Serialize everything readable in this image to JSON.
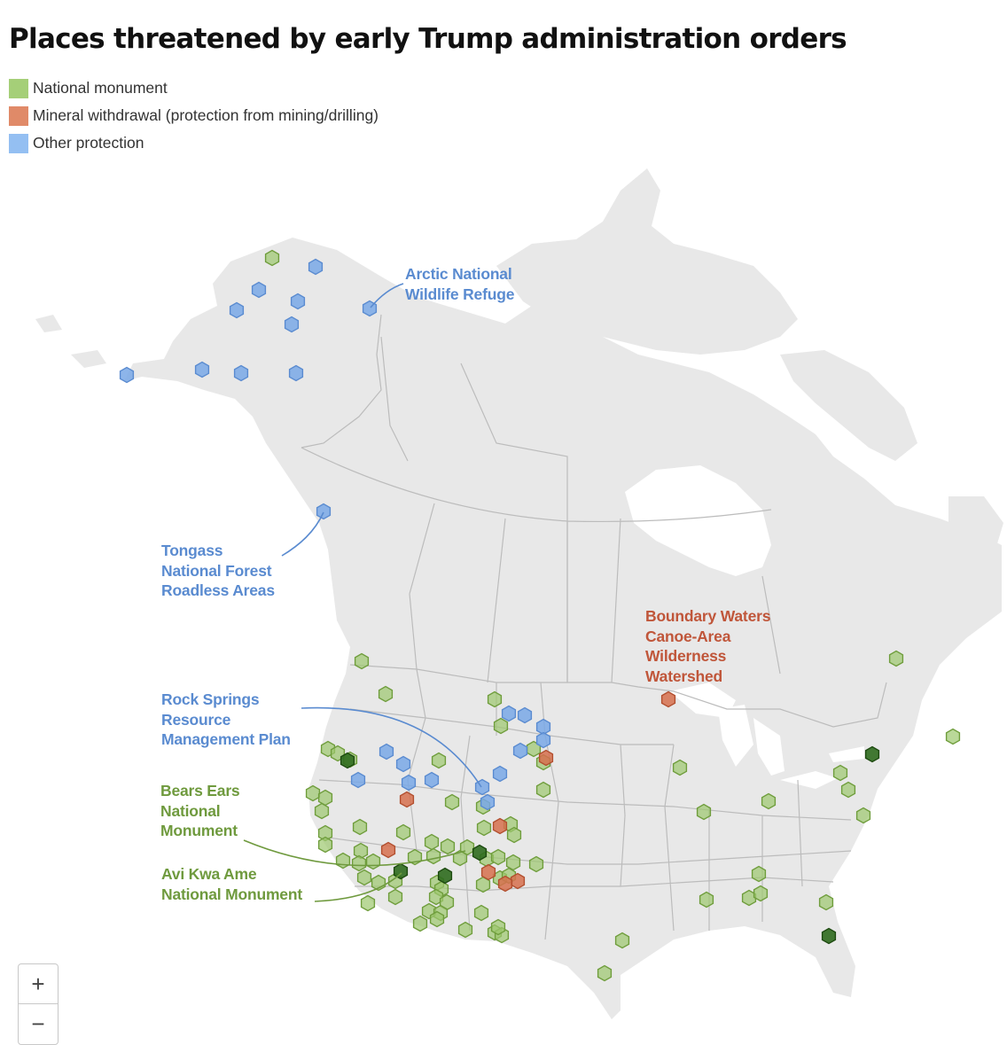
{
  "title": "Places threatened by early Trump administration orders",
  "legend": [
    {
      "label": "National monument",
      "color": "#9dc76d"
    },
    {
      "label": "Mineral withdrawal (protection from mining/drilling)",
      "color": "#d6704e"
    },
    {
      "label": "Other protection",
      "color": "#94bff2"
    }
  ],
  "annotations": {
    "arctic": "Arctic National\nWildlife Refuge",
    "tongass": "Tongass\nNational Forest\nRoadless Areas",
    "boundary": "Boundary Waters\nCanoe-Area\nWilderness\nWatershed",
    "rock_springs": "Rock Springs\nResource\nManagement Plan",
    "bears_ears": "Bears Ears\nNational\nMonument",
    "avi_kwa_ame": "Avi Kwa Ame\nNational Monument"
  },
  "zoom": {
    "in_label": "+",
    "out_label": "−"
  }
}
